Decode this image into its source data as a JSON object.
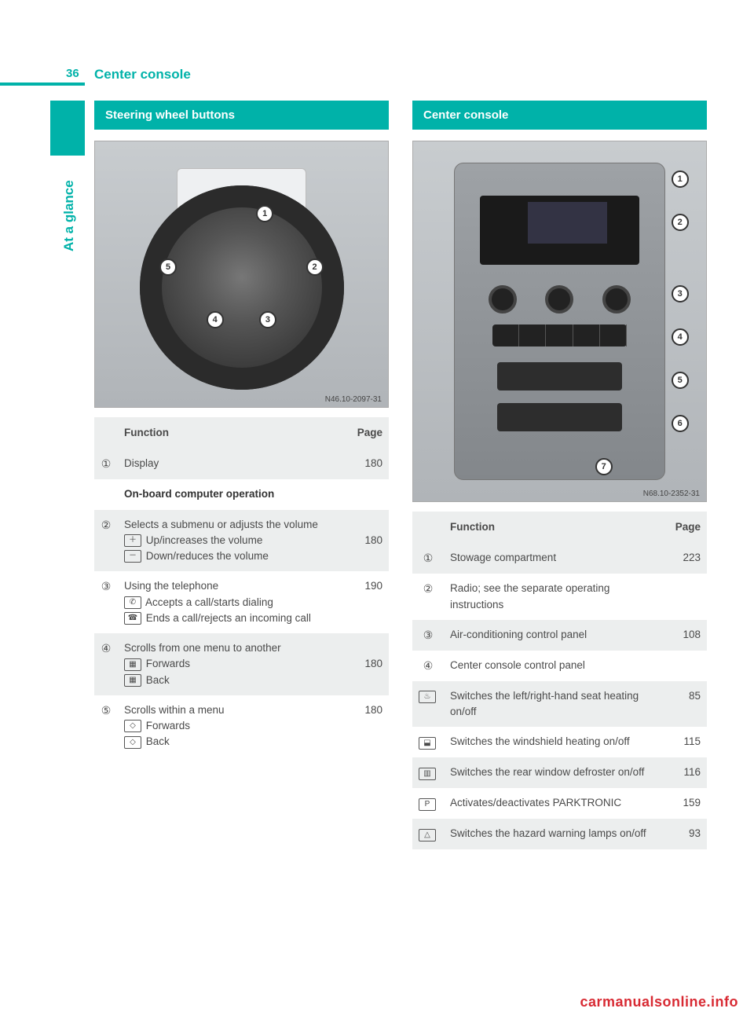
{
  "page": {
    "number": "36",
    "title": "Center console",
    "side_label": "At a glance",
    "watermark": "carmanualsonline.info",
    "accent_color": "#00b2a9"
  },
  "left": {
    "heading": "Steering wheel buttons",
    "figure_id": "N46.10-2097-31",
    "callouts": [
      "1",
      "2",
      "3",
      "4",
      "5"
    ],
    "table": {
      "headers": {
        "func": "Function",
        "page": "Page"
      },
      "rows": [
        {
          "marker": "①",
          "func": "Display",
          "page": "180",
          "shade": true
        },
        {
          "marker": "",
          "func_bold": "On-board computer operation",
          "page": "",
          "shade": false
        },
        {
          "marker": "②",
          "lines": [
            "Selects a submenu or adjusts the volume",
            {
              "sym": "＋",
              "text": " Up/increases the volume"
            },
            {
              "sym": "－",
              "text": " Down/reduces the volume"
            }
          ],
          "page": "180",
          "page_line_index": 1,
          "shade": true
        },
        {
          "marker": "③",
          "lines": [
            "Using the telephone",
            {
              "sym": "✆",
              "text": " Accepts a call/starts dialing"
            },
            {
              "sym": "☎",
              "text": " Ends a call/rejects an incoming call"
            }
          ],
          "page": "190",
          "shade": false
        },
        {
          "marker": "④",
          "lines": [
            "Scrolls from one menu to another",
            {
              "sym": "▦",
              "text": " Forwards"
            },
            {
              "sym": "▦",
              "text": " Back"
            }
          ],
          "page": "180",
          "page_line_index": 1,
          "shade": true
        },
        {
          "marker": "⑤",
          "lines": [
            "Scrolls within a menu",
            {
              "sym": "◇",
              "text": " Forwards"
            },
            {
              "sym": "◇",
              "text": " Back"
            }
          ],
          "page": "180",
          "shade": false
        }
      ]
    }
  },
  "right": {
    "heading": "Center console",
    "figure_id": "N68.10-2352-31",
    "callouts": [
      "1",
      "2",
      "3",
      "4",
      "5",
      "6",
      "7"
    ],
    "table": {
      "headers": {
        "func": "Function",
        "page": "Page"
      },
      "rows": [
        {
          "marker": "①",
          "func": "Stowage compartment",
          "page": "223",
          "shade": true
        },
        {
          "marker": "②",
          "func": "Radio; see the separate operating instructions",
          "page": "",
          "shade": false
        },
        {
          "marker": "③",
          "func": "Air-conditioning control panel",
          "page": "108",
          "shade": true
        },
        {
          "marker": "④",
          "func": "Center console control panel",
          "page": "",
          "shade": false
        },
        {
          "marker_sym": "♨",
          "func": "Switches the left/right-hand seat heating on/off",
          "page": "85",
          "shade": true
        },
        {
          "marker_sym": "⬓",
          "func": "Switches the windshield heating on/off",
          "page": "115",
          "shade": false
        },
        {
          "marker_sym": "▥",
          "func": "Switches the rear window defroster on/off",
          "page": "116",
          "shade": true
        },
        {
          "marker_sym": "P",
          "func": "Activates/deactivates PARKTRONIC",
          "page": "159",
          "shade": false
        },
        {
          "marker_sym": "△",
          "func": "Switches the hazard warning lamps on/off",
          "page": "93",
          "shade": true
        }
      ]
    }
  }
}
